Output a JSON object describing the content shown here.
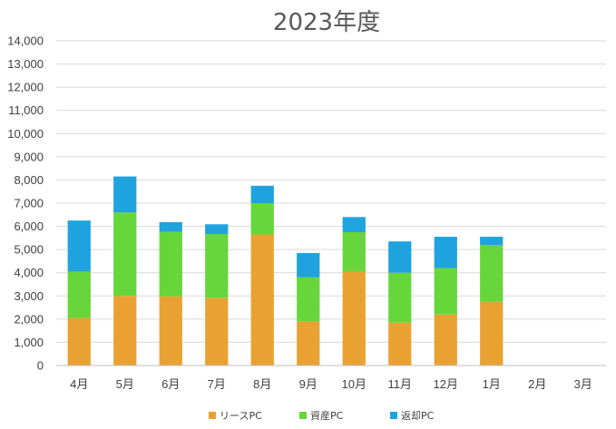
{
  "chart_data": {
    "type": "bar",
    "stacked": true,
    "title": "2023年度",
    "xlabel": "",
    "ylabel": "",
    "ylim": [
      0,
      14000
    ],
    "y_ticks": [
      0,
      1000,
      2000,
      3000,
      4000,
      5000,
      6000,
      7000,
      8000,
      9000,
      10000,
      11000,
      12000,
      13000,
      14000
    ],
    "y_tick_labels": [
      "0",
      "1,000",
      "2,000",
      "3,000",
      "4,000",
      "5,000",
      "6,000",
      "7,000",
      "8,000",
      "9,000",
      "10,000",
      "11,000",
      "12,000",
      "13,000",
      "14,000"
    ],
    "grid": true,
    "legend_position": "bottom",
    "categories": [
      "4月",
      "5月",
      "6月",
      "7月",
      "8月",
      "9月",
      "10月",
      "11月",
      "12月",
      "1月",
      "2月",
      "3月"
    ],
    "series": [
      {
        "name": "リースPC",
        "color": "#e9a232",
        "values": [
          2050,
          3000,
          2980,
          2920,
          5650,
          1900,
          4050,
          1850,
          2200,
          2750,
          0,
          0
        ]
      },
      {
        "name": "資産PC",
        "color": "#66d63a",
        "values": [
          2000,
          3600,
          2780,
          2750,
          1350,
          1900,
          1700,
          2150,
          2000,
          2450,
          0,
          0
        ]
      },
      {
        "name": "返却PC",
        "color": "#1fa3de",
        "values": [
          2200,
          1550,
          420,
          420,
          750,
          1050,
          650,
          1350,
          1350,
          350,
          0,
          0
        ]
      }
    ]
  }
}
